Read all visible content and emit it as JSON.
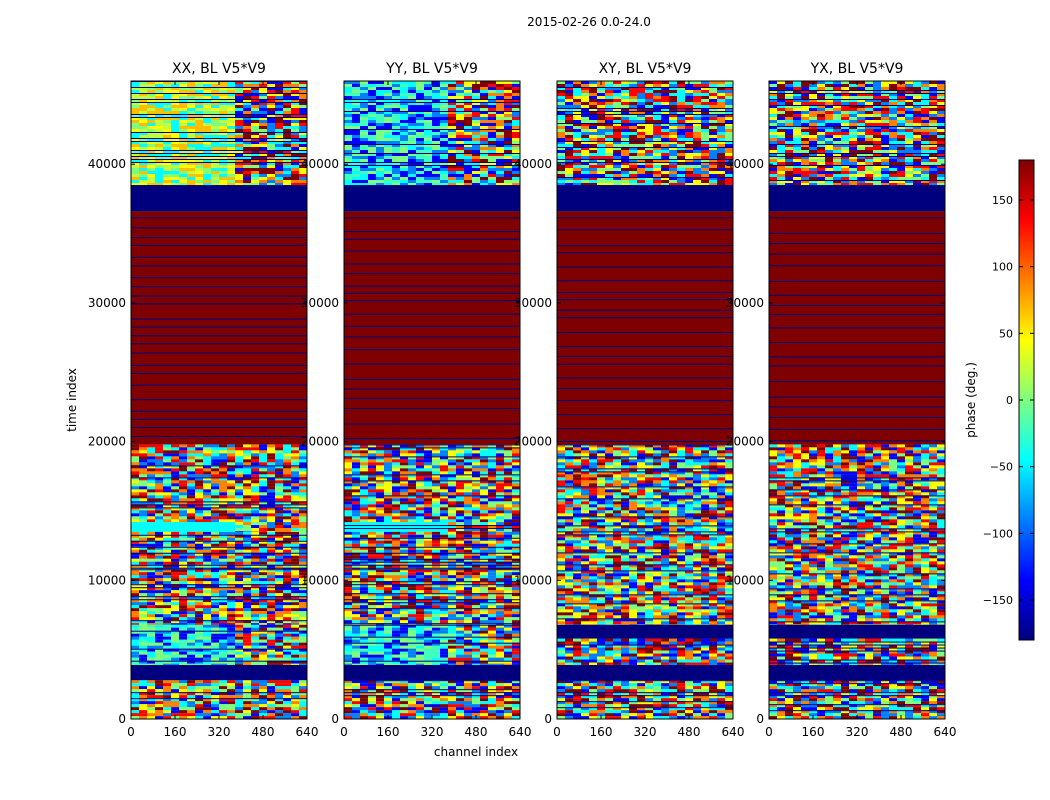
{
  "chart_data": {
    "type": "heatmap",
    "suptitle": "2015-02-26 0.0-24.0",
    "ylabel": "time index",
    "xlabel": "channel index",
    "x_range": [
      0,
      640
    ],
    "y_range": [
      0,
      46000
    ],
    "x_ticks": [
      0,
      160,
      320,
      480,
      640
    ],
    "y_ticks": [
      0,
      10000,
      20000,
      30000,
      40000
    ],
    "panels": [
      {
        "title": "XX, BL V5*V9",
        "segments": [
          {
            "from": 0,
            "to": 2800,
            "kind": "noisy"
          },
          {
            "from": 2800,
            "to": 3900,
            "kind": "flag"
          },
          {
            "from": 3900,
            "to": 6800,
            "kind": "cool"
          },
          {
            "from": 6800,
            "to": 10800,
            "kind": "noisy"
          },
          {
            "from": 10800,
            "to": 13500,
            "kind": "noisy"
          },
          {
            "from": 13500,
            "to": 14200,
            "kind": "cyan"
          },
          {
            "from": 14200,
            "to": 19800,
            "kind": "noisy"
          },
          {
            "from": 19800,
            "to": 36600,
            "kind": "solid"
          },
          {
            "from": 36600,
            "to": 38500,
            "kind": "flag"
          },
          {
            "from": 38500,
            "to": 46000,
            "kind": "warm"
          }
        ]
      },
      {
        "title": "YY, BL V5*V9",
        "segments": [
          {
            "from": 0,
            "to": 2800,
            "kind": "noisy"
          },
          {
            "from": 2800,
            "to": 3900,
            "kind": "flag"
          },
          {
            "from": 3900,
            "to": 6800,
            "kind": "cool"
          },
          {
            "from": 6800,
            "to": 10800,
            "kind": "noisy"
          },
          {
            "from": 10800,
            "to": 13500,
            "kind": "noisy"
          },
          {
            "from": 13500,
            "to": 14200,
            "kind": "cyan"
          },
          {
            "from": 14200,
            "to": 19800,
            "kind": "noisy"
          },
          {
            "from": 19800,
            "to": 36600,
            "kind": "solid"
          },
          {
            "from": 36600,
            "to": 38500,
            "kind": "flag"
          },
          {
            "from": 38500,
            "to": 46000,
            "kind": "cool"
          }
        ]
      },
      {
        "title": "XY, BL V5*V9",
        "segments": [
          {
            "from": 0,
            "to": 2800,
            "kind": "noisy"
          },
          {
            "from": 2800,
            "to": 3900,
            "kind": "flag"
          },
          {
            "from": 3900,
            "to": 5800,
            "kind": "noisy"
          },
          {
            "from": 5800,
            "to": 6800,
            "kind": "flag"
          },
          {
            "from": 6800,
            "to": 19800,
            "kind": "noisy"
          },
          {
            "from": 19800,
            "to": 36600,
            "kind": "solid"
          },
          {
            "from": 36600,
            "to": 38500,
            "kind": "flag"
          },
          {
            "from": 38500,
            "to": 46000,
            "kind": "noisy"
          }
        ]
      },
      {
        "title": "YX, BL V5*V9",
        "segments": [
          {
            "from": 0,
            "to": 2800,
            "kind": "noisy"
          },
          {
            "from": 2800,
            "to": 3900,
            "kind": "flag"
          },
          {
            "from": 3900,
            "to": 5800,
            "kind": "noisy"
          },
          {
            "from": 5800,
            "to": 6800,
            "kind": "flag"
          },
          {
            "from": 6800,
            "to": 19800,
            "kind": "noisy"
          },
          {
            "from": 19800,
            "to": 36600,
            "kind": "solid"
          },
          {
            "from": 36600,
            "to": 38500,
            "kind": "flag"
          },
          {
            "from": 38500,
            "to": 46000,
            "kind": "noisy"
          }
        ]
      }
    ],
    "colorbar": {
      "label": "phase (deg.)",
      "range": [
        -180,
        180
      ],
      "ticks": [
        -150,
        -100,
        -50,
        0,
        50,
        100,
        150
      ],
      "tick_labels": [
        "−150",
        "−100",
        "−50",
        "0",
        "50",
        "100",
        "150"
      ],
      "colormap": "jet",
      "colors": [
        "#00007f",
        "#0000ff",
        "#007fff",
        "#00ffff",
        "#7fff7f",
        "#ffff00",
        "#ff7f00",
        "#ff0000",
        "#7f0000"
      ]
    },
    "solid_phase_color": "#7f0000",
    "flag_color": "#00007f"
  }
}
